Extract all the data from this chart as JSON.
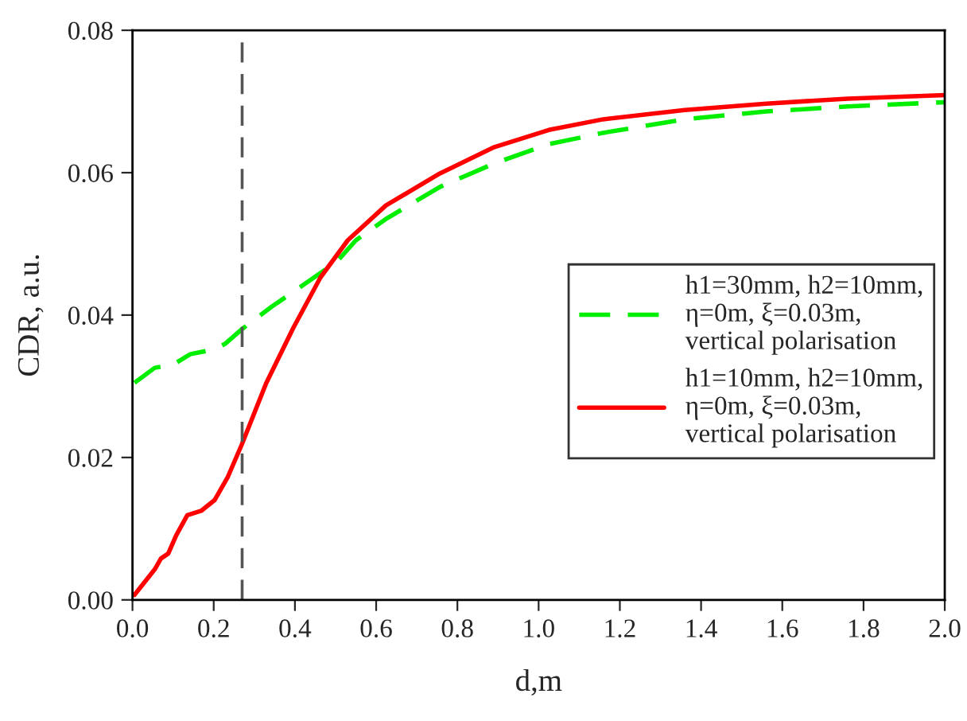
{
  "chart_data": {
    "type": "line",
    "xlabel": "d,m",
    "ylabel": "CDR, a.u.",
    "xlim": [
      0,
      2.0
    ],
    "ylim": [
      0,
      0.08
    ],
    "xticks": [
      {
        "value": 0,
        "label": "0.0"
      },
      {
        "value": 0.2,
        "label": "0.2"
      },
      {
        "value": 0.4,
        "label": "0.4"
      },
      {
        "value": 0.6,
        "label": "0.6"
      },
      {
        "value": 0.8,
        "label": "0.8"
      },
      {
        "value": 1.0,
        "label": "1.0"
      },
      {
        "value": 1.2,
        "label": "1.2"
      },
      {
        "value": 1.4,
        "label": "1.4"
      },
      {
        "value": 1.6,
        "label": "1.6"
      },
      {
        "value": 1.8,
        "label": "1.8"
      },
      {
        "value": 2.0,
        "label": "2.0"
      }
    ],
    "yticks": [
      {
        "value": 0,
        "label": "0.00"
      },
      {
        "value": 0.02,
        "label": "0.02"
      },
      {
        "value": 0.04,
        "label": "0.04"
      },
      {
        "value": 0.06,
        "label": "0.06"
      },
      {
        "value": 0.08,
        "label": "0.08"
      }
    ],
    "grid": false,
    "legend": "bottom right",
    "ref_lines": [
      {
        "axis": "x",
        "value": 0.27,
        "label": null,
        "color": "#555555",
        "line_style": "dashed"
      }
    ],
    "series": [
      {
        "name": "h1=30mm, h2=10mm,\nη=0m, ξ=0.03m,\nvertical polarisation",
        "color": "#00ee00",
        "line_style": "dashed",
        "x": [
          0.005,
          0.055,
          0.099,
          0.142,
          0.202,
          0.229,
          0.269,
          0.343,
          0.41,
          0.503,
          0.55,
          0.624,
          0.757,
          0.891,
          1.025,
          1.159,
          1.36,
          1.561,
          1.761,
          2.0
        ],
        "values": [
          0.0305,
          0.0326,
          0.033,
          0.0345,
          0.0352,
          0.036,
          0.038,
          0.0412,
          0.0438,
          0.0475,
          0.0505,
          0.0535,
          0.058,
          0.0613,
          0.064,
          0.0656,
          0.0675,
          0.0686,
          0.0693,
          0.0699
        ]
      },
      {
        "name": "h1=10mm, h2=10mm,\nη=0m, ξ=0.03m,\nvertical polarisation",
        "color": "#ff0000",
        "line_style": "solid",
        "x": [
          0.005,
          0.055,
          0.07,
          0.088,
          0.108,
          0.135,
          0.169,
          0.202,
          0.235,
          0.269,
          0.329,
          0.396,
          0.463,
          0.53,
          0.624,
          0.757,
          0.891,
          1.025,
          1.159,
          1.36,
          1.561,
          1.761,
          2.0
        ],
        "values": [
          0.0007,
          0.0043,
          0.0058,
          0.0065,
          0.0091,
          0.0119,
          0.0125,
          0.014,
          0.0173,
          0.0218,
          0.0304,
          0.0382,
          0.0453,
          0.0505,
          0.0554,
          0.0599,
          0.0636,
          0.066,
          0.0675,
          0.0688,
          0.0697,
          0.0704,
          0.0709
        ]
      }
    ]
  }
}
